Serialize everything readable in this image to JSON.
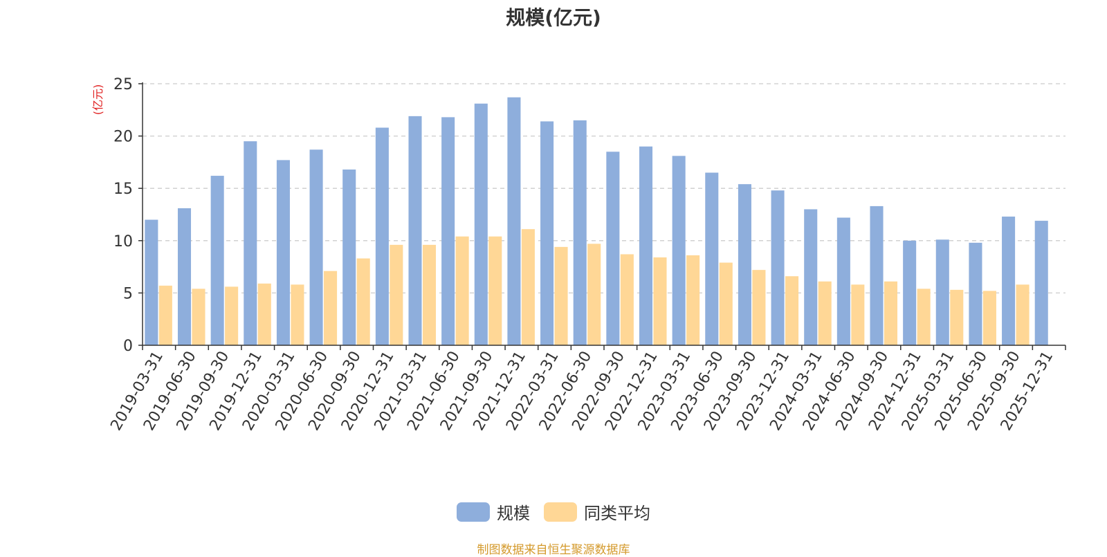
{
  "colors": {
    "scale": "#8eaedc",
    "avg": "#ffd796",
    "axis": "#333333",
    "grid": "#cccccc",
    "unit": "#e02020",
    "source": "#d49a2c"
  },
  "chart_data": {
    "type": "bar",
    "title": "规模(亿元)",
    "ylabel": "(亿元)",
    "ylim": [
      0,
      25
    ],
    "yticks": [
      0,
      5,
      10,
      15,
      20,
      25
    ],
    "grid": true,
    "legend_position": "bottom",
    "categories": [
      "2019-03-31",
      "2019-06-30",
      "2019-09-30",
      "2019-12-31",
      "2020-03-31",
      "2020-06-30",
      "2020-09-30",
      "2020-12-31",
      "2021-03-31",
      "2021-06-30",
      "2021-09-30",
      "2021-12-31",
      "2022-03-31",
      "2022-06-30",
      "2022-09-30",
      "2022-12-31",
      "2023-03-31",
      "2023-06-30",
      "2023-09-30",
      "2023-12-31",
      "2024-03-31",
      "2024-06-30",
      "2024-09-30",
      "2024-12-31",
      "2025-03-31",
      "2025-06-30",
      "2025-09-30",
      "2025-12-31"
    ],
    "series": [
      {
        "name": "规模",
        "values": [
          12.0,
          13.1,
          16.2,
          19.5,
          17.7,
          18.7,
          16.8,
          20.8,
          21.9,
          21.8,
          23.1,
          23.7,
          21.4,
          21.5,
          18.5,
          19.0,
          18.1,
          16.5,
          15.4,
          14.8,
          13.0,
          12.2,
          13.3,
          10.0,
          10.1,
          9.8,
          12.3,
          11.9
        ]
      },
      {
        "name": "同类平均",
        "values": [
          5.7,
          5.4,
          5.6,
          5.9,
          5.8,
          7.1,
          8.3,
          9.6,
          9.6,
          10.4,
          10.4,
          11.1,
          9.4,
          9.7,
          8.7,
          8.4,
          8.6,
          7.9,
          7.2,
          6.6,
          6.1,
          5.8,
          6.1,
          5.4,
          5.3,
          5.2,
          5.8,
          null
        ]
      }
    ]
  },
  "footer": {
    "source": "制图数据来自恒生聚源数据库"
  }
}
